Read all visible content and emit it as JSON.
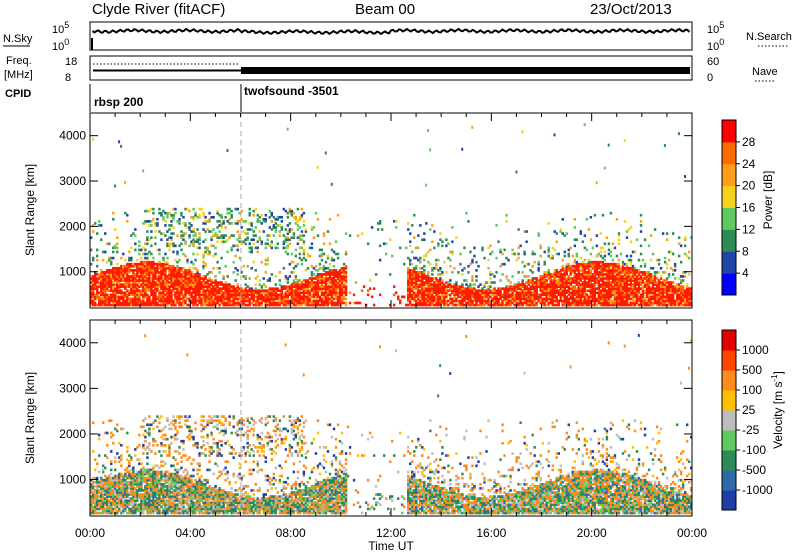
{
  "header": {
    "station": "Clyde River (fitACF)",
    "beam": "Beam 00",
    "date": "23/Oct/2013"
  },
  "strip_labels": {
    "nsky": "N.Sky",
    "nsearch": "N.Search",
    "freq_line1": "Freq.",
    "freq_line2": "[MHz]",
    "nave": "Nave",
    "cpid": "CPID"
  },
  "chart_data": [
    {
      "type": "line",
      "panel": "noise",
      "series": [
        {
          "name": "N.Sky"
        },
        {
          "name": "N.Search"
        }
      ],
      "left_axis_ticks": [
        "10^5",
        "10^0"
      ],
      "right_axis_ticks": [
        "10^5",
        "10^0"
      ]
    },
    {
      "type": "line",
      "panel": "frequency-nave",
      "series": [
        {
          "name": "Freq.",
          "unit": "MHz"
        },
        {
          "name": "Nave"
        }
      ],
      "left_axis_ticks": [
        18,
        8
      ],
      "right_axis_ticks": [
        60,
        0
      ]
    },
    {
      "type": "table",
      "panel": "cpid",
      "segments": [
        {
          "label": "rbsp 200",
          "start": "00:00",
          "end": "06:00"
        },
        {
          "label": "twofsound -3501",
          "start": "06:00",
          "end": "24:00"
        }
      ]
    },
    {
      "type": "heatmap",
      "panel": "power",
      "xlabel": "Time UT",
      "ylabel": "Slant Range [km]",
      "y_ticks": [
        1000,
        2000,
        3000,
        4000
      ],
      "ylim": [
        200,
        4500
      ],
      "x_ticks": [
        "00:00",
        "04:00",
        "08:00",
        "12:00",
        "16:00",
        "20:00",
        "00:00"
      ],
      "colorbar": {
        "label": "Power [dB]",
        "ticks": [
          4,
          8,
          12,
          16,
          20,
          24,
          28
        ],
        "colors": [
          "#0000ff",
          "#1f46a8",
          "#2e8b57",
          "#5ec95e",
          "#f7d21c",
          "#ff9e1a",
          "#ff6a00",
          "#ff0000"
        ]
      }
    },
    {
      "type": "heatmap",
      "panel": "velocity",
      "xlabel": "Time UT",
      "ylabel": "Slant Range [km]",
      "y_ticks": [
        1000,
        2000,
        3000,
        4000
      ],
      "ylim": [
        200,
        4500
      ],
      "x_ticks": [
        "00:00",
        "04:00",
        "08:00",
        "12:00",
        "16:00",
        "20:00",
        "00:00"
      ],
      "colorbar": {
        "label": "Velocity [m s-1]",
        "ticks": [
          "1000",
          "500",
          "100",
          "25",
          "-25",
          "-100",
          "-500",
          "-1000"
        ],
        "colors": [
          "#1f3fa8",
          "#2f6aa8",
          "#2e8b57",
          "#5ec95e",
          "#bdbdbd",
          "#ffbf00",
          "#ff8c1a",
          "#ff4500",
          "#e00000"
        ]
      }
    }
  ],
  "time_axis": {
    "ticks": [
      "00:00",
      "04:00",
      "08:00",
      "12:00",
      "16:00",
      "20:00",
      "00:00"
    ],
    "label": "Time UT"
  }
}
